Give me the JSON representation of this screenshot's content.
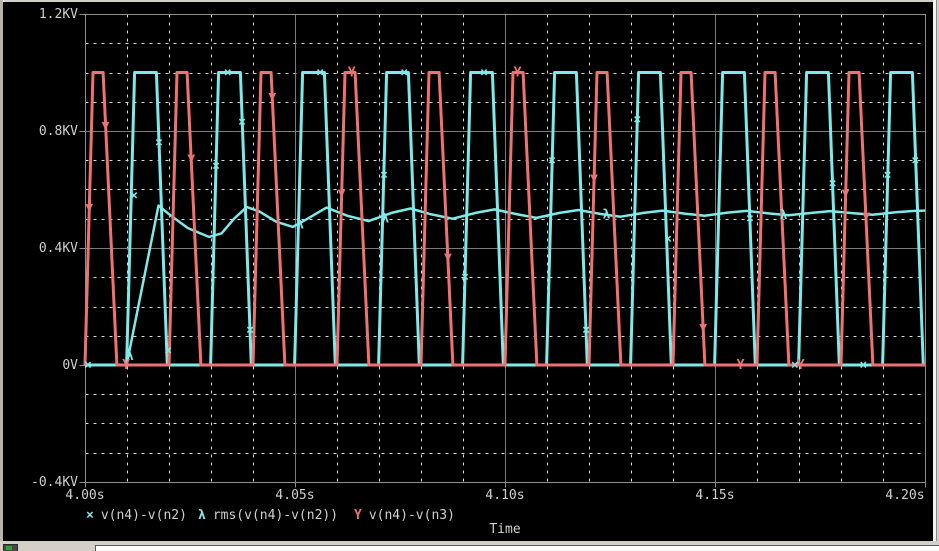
{
  "chart_data": {
    "type": "line",
    "title": "",
    "xlabel": "Time",
    "xlim": [
      4.0,
      4.2
    ],
    "ylim": [
      -0.4,
      1.2
    ],
    "x_ticks": [
      4.0,
      4.05,
      4.1,
      4.15,
      4.2
    ],
    "x_tick_labels": [
      "4.00s",
      "4.05s",
      "4.10s",
      "4.15s",
      "4.20s"
    ],
    "x_minor_step": 0.01,
    "y_ticks": [
      1.2,
      0.8,
      0.4,
      0.0,
      -0.4
    ],
    "y_tick_labels": [
      "1.2KV",
      "0.8KV",
      "0.4KV",
      "0V",
      "-0.4KV"
    ],
    "y_minor_step": 0.1,
    "grid": "major-solid minor-dashed",
    "legend_position": "bottom",
    "style": {
      "background": "#000000",
      "axis_color": "#8f8f8f",
      "major_grid_color": "#7a7a7a",
      "minor_grid_color": "#d8d8d8",
      "text_color": "#cfcfcf"
    },
    "series": [
      {
        "name": "v(n4)-v(n2)",
        "marker": "×",
        "color": "#7de9e9",
        "width": 3,
        "points": [
          [
            4.0,
            0
          ],
          [
            4.0099,
            0
          ],
          [
            4.0118,
            1
          ],
          [
            4.017,
            1
          ],
          [
            4.0196,
            0
          ],
          [
            4.0299,
            0
          ],
          [
            4.0318,
            1
          ],
          [
            4.037,
            1
          ],
          [
            4.0396,
            0
          ],
          [
            4.0499,
            0
          ],
          [
            4.0518,
            1
          ],
          [
            4.057,
            1
          ],
          [
            4.0596,
            0
          ],
          [
            4.0699,
            0
          ],
          [
            4.0718,
            1
          ],
          [
            4.077,
            1
          ],
          [
            4.0796,
            0
          ],
          [
            4.0899,
            0
          ],
          [
            4.0918,
            1
          ],
          [
            4.097,
            1
          ],
          [
            4.0996,
            0
          ],
          [
            4.1099,
            0
          ],
          [
            4.1118,
            1
          ],
          [
            4.117,
            1
          ],
          [
            4.1196,
            0
          ],
          [
            4.1299,
            0
          ],
          [
            4.1318,
            1
          ],
          [
            4.137,
            1
          ],
          [
            4.1396,
            0
          ],
          [
            4.1499,
            0
          ],
          [
            4.1518,
            1
          ],
          [
            4.157,
            1
          ],
          [
            4.1596,
            0
          ],
          [
            4.1699,
            0
          ],
          [
            4.1718,
            1
          ],
          [
            4.177,
            1
          ],
          [
            4.1796,
            0
          ],
          [
            4.1899,
            0
          ],
          [
            4.1918,
            1
          ],
          [
            4.197,
            1
          ],
          [
            4.1996,
            0
          ],
          [
            4.2,
            0
          ]
        ],
        "marker_points": [
          [
            4.0007,
            0
          ],
          [
            4.0117,
            0.58
          ],
          [
            4.0176,
            0.76
          ],
          [
            4.0198,
            0.05
          ],
          [
            4.0312,
            0.68
          ],
          [
            4.034,
            1.0
          ],
          [
            4.0374,
            0.83
          ],
          [
            4.0393,
            0.12
          ],
          [
            4.056,
            1.0
          ],
          [
            4.0712,
            0.65
          ],
          [
            4.076,
            1.0
          ],
          [
            4.0905,
            0.3
          ],
          [
            4.095,
            1.0
          ],
          [
            4.1112,
            0.7
          ],
          [
            4.1193,
            0.12
          ],
          [
            4.1315,
            0.84
          ],
          [
            4.1388,
            0.43
          ],
          [
            4.1583,
            0.5
          ],
          [
            4.169,
            0
          ],
          [
            4.178,
            0.62
          ],
          [
            4.1853,
            0
          ],
          [
            4.1911,
            0.65
          ],
          [
            4.1977,
            0.7
          ]
        ]
      },
      {
        "name": "rms(v(n4)-v(n2))",
        "marker": "λ",
        "color": "#7de9e9",
        "width": 2.5,
        "points": [
          [
            4.0,
            0
          ],
          [
            4.0099,
            0
          ],
          [
            4.0175,
            0.545
          ],
          [
            4.0205,
            0.51
          ],
          [
            4.0245,
            0.468
          ],
          [
            4.0295,
            0.438
          ],
          [
            4.0325,
            0.45
          ],
          [
            4.0355,
            0.5
          ],
          [
            4.0385,
            0.54
          ],
          [
            4.0415,
            0.525
          ],
          [
            4.0455,
            0.49
          ],
          [
            4.0495,
            0.472
          ],
          [
            4.053,
            0.5
          ],
          [
            4.0575,
            0.538
          ],
          [
            4.0625,
            0.51
          ],
          [
            4.0675,
            0.492
          ],
          [
            4.073,
            0.52
          ],
          [
            4.0775,
            0.535
          ],
          [
            4.0825,
            0.515
          ],
          [
            4.0875,
            0.5
          ],
          [
            4.093,
            0.52
          ],
          [
            4.0975,
            0.532
          ],
          [
            4.103,
            0.515
          ],
          [
            4.1075,
            0.503
          ],
          [
            4.113,
            0.52
          ],
          [
            4.1175,
            0.53
          ],
          [
            4.123,
            0.516
          ],
          [
            4.1275,
            0.507
          ],
          [
            4.133,
            0.52
          ],
          [
            4.1375,
            0.528
          ],
          [
            4.143,
            0.517
          ],
          [
            4.1475,
            0.51
          ],
          [
            4.153,
            0.521
          ],
          [
            4.1575,
            0.527
          ],
          [
            4.163,
            0.518
          ],
          [
            4.1675,
            0.512
          ],
          [
            4.173,
            0.52
          ],
          [
            4.1775,
            0.526
          ],
          [
            4.183,
            0.519
          ],
          [
            4.1875,
            0.514
          ],
          [
            4.193,
            0.522
          ],
          [
            4.1975,
            0.527
          ],
          [
            4.2,
            0.528
          ]
        ],
        "marker_points": [
          [
            4.0107,
            0.03
          ],
          [
            4.0512,
            0.48
          ],
          [
            4.0715,
            0.5
          ],
          [
            4.1242,
            0.514
          ],
          [
            4.1663,
            0.513
          ]
        ]
      },
      {
        "name": "v(n4)-v(n3)",
        "marker": "Y",
        "color": "#ee7272",
        "width": 3,
        "points": [
          [
            4.0,
            0
          ],
          [
            4.0019,
            1
          ],
          [
            4.0043,
            1
          ],
          [
            4.0076,
            0
          ],
          [
            4.02,
            0
          ],
          [
            4.0219,
            1
          ],
          [
            4.0243,
            1
          ],
          [
            4.0276,
            0
          ],
          [
            4.04,
            0
          ],
          [
            4.0419,
            1
          ],
          [
            4.0443,
            1
          ],
          [
            4.0476,
            0
          ],
          [
            4.06,
            0
          ],
          [
            4.0619,
            1
          ],
          [
            4.0643,
            1
          ],
          [
            4.0676,
            0
          ],
          [
            4.08,
            0
          ],
          [
            4.0819,
            1
          ],
          [
            4.0843,
            1
          ],
          [
            4.0876,
            0
          ],
          [
            4.1,
            0
          ],
          [
            4.1019,
            1
          ],
          [
            4.1043,
            1
          ],
          [
            4.1076,
            0
          ],
          [
            4.12,
            0
          ],
          [
            4.1219,
            1
          ],
          [
            4.1243,
            1
          ],
          [
            4.1276,
            0
          ],
          [
            4.14,
            0
          ],
          [
            4.1419,
            1
          ],
          [
            4.1443,
            1
          ],
          [
            4.1476,
            0
          ],
          [
            4.16,
            0
          ],
          [
            4.1619,
            1
          ],
          [
            4.1643,
            1
          ],
          [
            4.1676,
            0
          ],
          [
            4.18,
            0
          ],
          [
            4.1819,
            1
          ],
          [
            4.1843,
            1
          ],
          [
            4.1876,
            0
          ],
          [
            4.2,
            0
          ]
        ],
        "marker_points": [
          [
            4.001,
            0.53
          ],
          [
            4.0049,
            0.81
          ],
          [
            4.0098,
            0
          ],
          [
            4.0253,
            0.7
          ],
          [
            4.0446,
            0.91
          ],
          [
            4.0611,
            0.58
          ],
          [
            4.0635,
            1.0
          ],
          [
            4.0864,
            0.36
          ],
          [
            4.103,
            1.0
          ],
          [
            4.1212,
            0.63
          ],
          [
            4.1472,
            0.12
          ],
          [
            4.1561,
            0
          ],
          [
            4.1704,
            0
          ],
          [
            4.1811,
            0.58
          ],
          [
            4.186,
            0.5
          ]
        ]
      }
    ]
  },
  "legend": {
    "items": [
      {
        "marker": "×",
        "label": "v(n4)-v(n2)"
      },
      {
        "marker": "λ",
        "label": "rms(v(n4)-v(n2))"
      },
      {
        "marker": "Y",
        "label": "v(n4)-v(n3)"
      }
    ]
  },
  "axis_title": {
    "x": "Time"
  }
}
